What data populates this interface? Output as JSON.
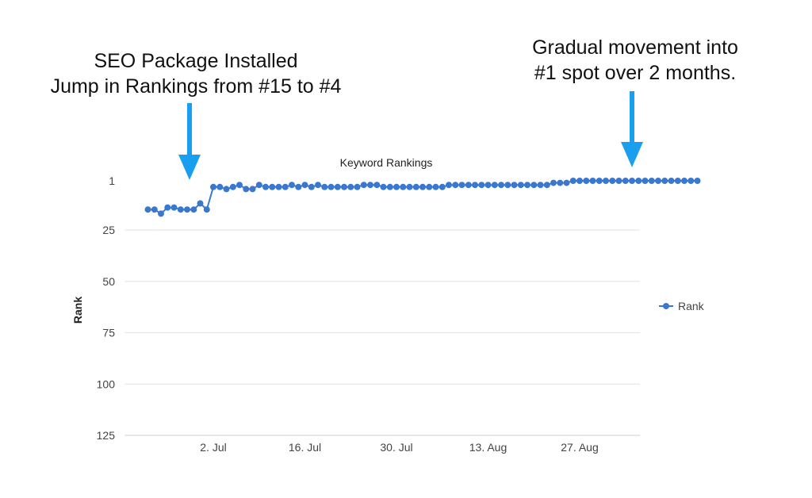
{
  "annotations": {
    "left": {
      "line1": "SEO Package Installed",
      "line2": "Jump in Rankings from #15 to #4"
    },
    "right": {
      "line1": "Gradual movement into",
      "line2": "#1 spot over 2 months."
    },
    "arrow_color": "#1a9ff0"
  },
  "chart_data": {
    "type": "line",
    "title": "Keyword Rankings",
    "ylabel": "Rank",
    "xlabel": "",
    "y_inverted": true,
    "ylim": [
      1,
      125
    ],
    "y_ticks": [
      1,
      25,
      50,
      75,
      100,
      125
    ],
    "x_tick_labels": [
      "2. Jul",
      "16. Jul",
      "30. Jul",
      "13. Aug",
      "27. Aug"
    ],
    "x_tick_dates": [
      "2018-07-02",
      "2018-07-16",
      "2018-07-30",
      "2018-08-13",
      "2018-08-27"
    ],
    "grid": true,
    "legend": "right",
    "series_color": "#3a78d0",
    "series": [
      {
        "name": "Rank",
        "points": [
          [
            "2018-06-22",
            15
          ],
          [
            "2018-06-23",
            15
          ],
          [
            "2018-06-24",
            17
          ],
          [
            "2018-06-25",
            14
          ],
          [
            "2018-06-26",
            14
          ],
          [
            "2018-06-27",
            15
          ],
          [
            "2018-06-28",
            15
          ],
          [
            "2018-06-29",
            15
          ],
          [
            "2018-06-30",
            12
          ],
          [
            "2018-07-01",
            15
          ],
          [
            "2018-07-02",
            4
          ],
          [
            "2018-07-03",
            4
          ],
          [
            "2018-07-04",
            5
          ],
          [
            "2018-07-05",
            4
          ],
          [
            "2018-07-06",
            3
          ],
          [
            "2018-07-07",
            5
          ],
          [
            "2018-07-08",
            5
          ],
          [
            "2018-07-09",
            3
          ],
          [
            "2018-07-10",
            4
          ],
          [
            "2018-07-11",
            4
          ],
          [
            "2018-07-12",
            4
          ],
          [
            "2018-07-13",
            4
          ],
          [
            "2018-07-14",
            3
          ],
          [
            "2018-07-15",
            4
          ],
          [
            "2018-07-16",
            3
          ],
          [
            "2018-07-17",
            4
          ],
          [
            "2018-07-18",
            3
          ],
          [
            "2018-07-19",
            4
          ],
          [
            "2018-07-20",
            4
          ],
          [
            "2018-07-21",
            4
          ],
          [
            "2018-07-22",
            4
          ],
          [
            "2018-07-23",
            4
          ],
          [
            "2018-07-24",
            4
          ],
          [
            "2018-07-25",
            3
          ],
          [
            "2018-07-26",
            3
          ],
          [
            "2018-07-27",
            3
          ],
          [
            "2018-07-28",
            4
          ],
          [
            "2018-07-29",
            4
          ],
          [
            "2018-07-30",
            4
          ],
          [
            "2018-07-31",
            4
          ],
          [
            "2018-08-01",
            4
          ],
          [
            "2018-08-02",
            4
          ],
          [
            "2018-08-03",
            4
          ],
          [
            "2018-08-04",
            4
          ],
          [
            "2018-08-05",
            4
          ],
          [
            "2018-08-06",
            4
          ],
          [
            "2018-08-07",
            3
          ],
          [
            "2018-08-08",
            3
          ],
          [
            "2018-08-09",
            3
          ],
          [
            "2018-08-10",
            3
          ],
          [
            "2018-08-11",
            3
          ],
          [
            "2018-08-12",
            3
          ],
          [
            "2018-08-13",
            3
          ],
          [
            "2018-08-14",
            3
          ],
          [
            "2018-08-15",
            3
          ],
          [
            "2018-08-16",
            3
          ],
          [
            "2018-08-17",
            3
          ],
          [
            "2018-08-18",
            3
          ],
          [
            "2018-08-19",
            3
          ],
          [
            "2018-08-20",
            3
          ],
          [
            "2018-08-21",
            3
          ],
          [
            "2018-08-22",
            3
          ],
          [
            "2018-08-23",
            2
          ],
          [
            "2018-08-24",
            2
          ],
          [
            "2018-08-25",
            2
          ],
          [
            "2018-08-26",
            1
          ],
          [
            "2018-08-27",
            1
          ],
          [
            "2018-08-28",
            1
          ],
          [
            "2018-08-29",
            1
          ],
          [
            "2018-08-30",
            1
          ],
          [
            "2018-08-31",
            1
          ],
          [
            "2018-09-01",
            1
          ],
          [
            "2018-09-02",
            1
          ],
          [
            "2018-09-03",
            1
          ],
          [
            "2018-09-04",
            1
          ],
          [
            "2018-09-05",
            1
          ],
          [
            "2018-09-06",
            1
          ],
          [
            "2018-09-07",
            1
          ],
          [
            "2018-09-08",
            1
          ],
          [
            "2018-09-09",
            1
          ],
          [
            "2018-09-10",
            1
          ],
          [
            "2018-09-11",
            1
          ],
          [
            "2018-09-12",
            1
          ],
          [
            "2018-09-13",
            1
          ],
          [
            "2018-09-14",
            1
          ]
        ]
      }
    ]
  }
}
